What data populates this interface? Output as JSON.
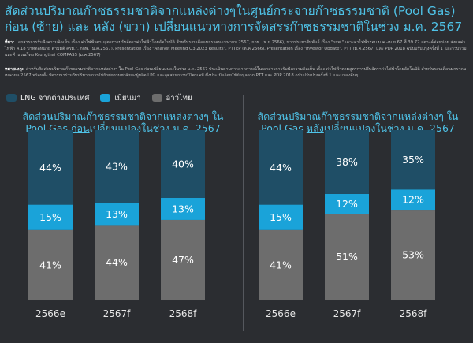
{
  "header": {
    "title": "สัดส่วนปริมาณก๊าซธรรมชาติจากแหล่งต่างๆในศูนย์กระจายก๊าซธรรมชาติ (Pool Gas)\nก่อน (ซ้าย) และ หลัง (ขวา) เปลี่ยนแนวทางการจัดสรรก๊าซธรรมชาติในช่วง ม.ค. 2567"
  },
  "source": {
    "label": "ที่มา:",
    "text": "เอกสารการรับฟังความคิดเห็น เรื่อง ค่าไฟฟ้าตามสูตรการปรับอัตราค่าไฟฟ้าโดยอัตโนมัติ สำหรับรอบเดือนมกราคม-เมษายน 2567, กกพ. (พ.ย.2566), ข่าวประชาสัมพันธ์ เรื่อง \"กกพ.\" เคาะค่าไฟฟ้ารอบ ม.ค.-เม.ย.67 ที่ 39.72 สตางค์ต่อหน่วย ส่งผลค่าไฟฟ้า 4.18 บาทต่อหน่วย ตามมติ ครม.\", กกพ. (ม.ค.2567), Presentation เรื่อง \"Analyst Meeting Q3 2023 Results\", PTTEP (ต.ค.2566), Presentation เรื่อง \"Investor Update\", PTT (ม.ค.2567) และ PDP 2018 ฉบับปรับปรุงครั้งที่ 1 และรวบรวมและคำนวณโดย Krungthai COMPASS (ม.ค.2567)"
  },
  "note": {
    "label": "หมายเหตุ:",
    "text": "สำหรับสัดส่วนปริมาณก๊าซธรรมชาติจากแหล่งต่างๆ ใน Pool Gas ก่อนเปลี่ยนแปลงในช่วง ม.ค. 2567 ประเมินตามการคาดการณ์ในเอกสารการรับฟังความคิดเห็น เรื่อง ค่าไฟฟ้าตามสูตรการปรับอัตราค่าไฟฟ้าโดยอัตโนมัติ สำหรับรอบเดือนมกราคม-เมษายน 2567 พร้อมทั้ง พิจารณาร่วมกับปริมาณการใช้ก๊าซธรรมชาติของผู้ผลิต LPG และอุตสาหกรรมปิโตรเคมี ซึ่งประเมินโดยใช้ข้อมูลจาก PTT และ PDP 2018 ฉบับปรับปรุงครั้งที่ 1 และแหล่งอื่นๆ"
  },
  "legend": [
    {
      "label": "LNG จากต่างประเทศ",
      "color": "#1f4e66"
    },
    {
      "label": "เมียนมา",
      "color": "#1aa3d9"
    },
    {
      "label": "อ่าวไทย",
      "color": "#6d6d6d"
    }
  ],
  "chart_data": [
    {
      "type": "bar",
      "stacked": true,
      "title_line1": "สัดส่วนปริมาณก๊าซธรรมชาติจากแหล่งต่างๆ ใน",
      "title_pre": "Pool Gas ",
      "title_emph": "ก่อน",
      "title_post": "เปลี่ยนแปลงในช่วง ม.ค. 2567",
      "categories": [
        "2566e",
        "2567f",
        "2568f"
      ],
      "series": [
        {
          "name": "อ่าวไทย",
          "values": [
            41,
            44,
            47
          ]
        },
        {
          "name": "เมียนมา",
          "values": [
            15,
            13,
            13
          ]
        },
        {
          "name": "LNG จากต่างประเทศ",
          "values": [
            44,
            43,
            40
          ]
        }
      ],
      "unit": "%"
    },
    {
      "type": "bar",
      "stacked": true,
      "title_line1": "สัดส่วนปริมาณก๊าซธรรมชาติจากแหล่งต่างๆ ใน",
      "title_pre": "Pool Gas  ",
      "title_emph": "หลัง",
      "title_post": "เปลี่ยนแปลงในช่วง ม.ค. 2567",
      "categories": [
        "2566e",
        "2567f",
        "2568f"
      ],
      "series": [
        {
          "name": "อ่าวไทย",
          "values": [
            41,
            51,
            53
          ]
        },
        {
          "name": "เมียนมา",
          "values": [
            15,
            12,
            12
          ]
        },
        {
          "name": "LNG จากต่างประเทศ",
          "values": [
            44,
            38,
            35
          ]
        }
      ],
      "unit": "%"
    }
  ]
}
